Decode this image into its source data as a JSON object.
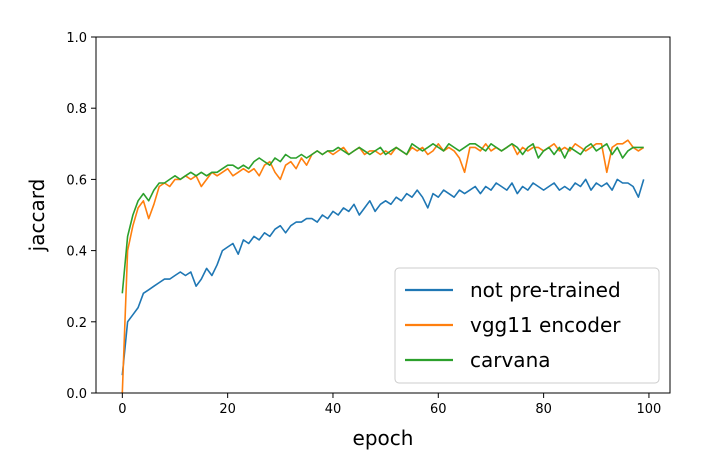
{
  "chart_data": {
    "type": "line",
    "xlabel": "epoch",
    "ylabel": "jaccard",
    "xlim": [
      -5,
      104
    ],
    "ylim": [
      0,
      1
    ],
    "xticks": [
      0,
      20,
      40,
      60,
      80,
      100
    ],
    "yticks": [
      0.0,
      0.2,
      0.4,
      0.6,
      0.8,
      1.0
    ],
    "xtick_labels": [
      "0",
      "20",
      "40",
      "60",
      "80",
      "100"
    ],
    "ytick_labels": [
      "0.0",
      "0.2",
      "0.4",
      "0.6",
      "0.8",
      "1.0"
    ],
    "legend_position": "lower-right",
    "grid": false,
    "series": [
      {
        "name": "not pre-trained",
        "color": "#1f77b4",
        "x": [
          0,
          1,
          2,
          3,
          4,
          5,
          6,
          7,
          8,
          9,
          10,
          11,
          12,
          13,
          14,
          15,
          16,
          17,
          18,
          19,
          20,
          21,
          22,
          23,
          24,
          25,
          26,
          27,
          28,
          29,
          30,
          31,
          32,
          33,
          34,
          35,
          36,
          37,
          38,
          39,
          40,
          41,
          42,
          43,
          44,
          45,
          46,
          47,
          48,
          49,
          50,
          51,
          52,
          53,
          54,
          55,
          56,
          57,
          58,
          59,
          60,
          61,
          62,
          63,
          64,
          65,
          66,
          67,
          68,
          69,
          70,
          71,
          72,
          73,
          74,
          75,
          76,
          77,
          78,
          79,
          80,
          81,
          82,
          83,
          84,
          85,
          86,
          87,
          88,
          89,
          90,
          91,
          92,
          93,
          94,
          95,
          96,
          97,
          98,
          99
        ],
        "y": [
          0.05,
          0.2,
          0.22,
          0.24,
          0.28,
          0.29,
          0.3,
          0.31,
          0.32,
          0.32,
          0.33,
          0.34,
          0.33,
          0.34,
          0.3,
          0.32,
          0.35,
          0.33,
          0.36,
          0.4,
          0.41,
          0.42,
          0.39,
          0.43,
          0.42,
          0.44,
          0.43,
          0.45,
          0.44,
          0.46,
          0.47,
          0.45,
          0.47,
          0.48,
          0.48,
          0.49,
          0.49,
          0.48,
          0.5,
          0.49,
          0.51,
          0.5,
          0.52,
          0.51,
          0.53,
          0.5,
          0.52,
          0.54,
          0.51,
          0.53,
          0.54,
          0.53,
          0.55,
          0.54,
          0.56,
          0.55,
          0.57,
          0.55,
          0.52,
          0.56,
          0.55,
          0.57,
          0.56,
          0.55,
          0.57,
          0.56,
          0.57,
          0.58,
          0.56,
          0.58,
          0.57,
          0.59,
          0.58,
          0.57,
          0.59,
          0.56,
          0.58,
          0.57,
          0.59,
          0.58,
          0.57,
          0.58,
          0.59,
          0.57,
          0.58,
          0.57,
          0.59,
          0.58,
          0.6,
          0.57,
          0.59,
          0.58,
          0.59,
          0.57,
          0.6,
          0.59,
          0.59,
          0.58,
          0.55,
          0.6
        ]
      },
      {
        "name": "vgg11 encoder",
        "color": "#ff7f0e",
        "x": [
          0,
          1,
          2,
          3,
          4,
          5,
          6,
          7,
          8,
          9,
          10,
          11,
          12,
          13,
          14,
          15,
          16,
          17,
          18,
          19,
          20,
          21,
          22,
          23,
          24,
          25,
          26,
          27,
          28,
          29,
          30,
          31,
          32,
          33,
          34,
          35,
          36,
          37,
          38,
          39,
          40,
          41,
          42,
          43,
          44,
          45,
          46,
          47,
          48,
          49,
          50,
          51,
          52,
          53,
          54,
          55,
          56,
          57,
          58,
          59,
          60,
          61,
          62,
          63,
          64,
          65,
          66,
          67,
          68,
          69,
          70,
          71,
          72,
          73,
          74,
          75,
          76,
          77,
          78,
          79,
          80,
          81,
          82,
          83,
          84,
          85,
          86,
          87,
          88,
          89,
          90,
          91,
          92,
          93,
          94,
          95,
          96,
          97,
          98,
          99
        ],
        "y": [
          0.0,
          0.4,
          0.47,
          0.52,
          0.54,
          0.49,
          0.53,
          0.58,
          0.59,
          0.58,
          0.6,
          0.6,
          0.61,
          0.6,
          0.61,
          0.58,
          0.6,
          0.62,
          0.61,
          0.62,
          0.63,
          0.61,
          0.62,
          0.63,
          0.62,
          0.63,
          0.61,
          0.64,
          0.65,
          0.62,
          0.6,
          0.64,
          0.65,
          0.63,
          0.66,
          0.64,
          0.67,
          0.68,
          0.67,
          0.68,
          0.67,
          0.68,
          0.69,
          0.67,
          0.68,
          0.69,
          0.67,
          0.68,
          0.68,
          0.67,
          0.68,
          0.67,
          0.69,
          0.68,
          0.67,
          0.69,
          0.68,
          0.69,
          0.67,
          0.68,
          0.7,
          0.68,
          0.69,
          0.68,
          0.66,
          0.62,
          0.69,
          0.69,
          0.68,
          0.7,
          0.68,
          0.69,
          0.68,
          0.69,
          0.7,
          0.67,
          0.69,
          0.68,
          0.69,
          0.69,
          0.68,
          0.69,
          0.7,
          0.68,
          0.69,
          0.68,
          0.7,
          0.69,
          0.68,
          0.69,
          0.7,
          0.7,
          0.62,
          0.69,
          0.7,
          0.7,
          0.71,
          0.69,
          0.68,
          0.69
        ]
      },
      {
        "name": "carvana",
        "color": "#2ca02c",
        "x": [
          0,
          1,
          2,
          3,
          4,
          5,
          6,
          7,
          8,
          9,
          10,
          11,
          12,
          13,
          14,
          15,
          16,
          17,
          18,
          19,
          20,
          21,
          22,
          23,
          24,
          25,
          26,
          27,
          28,
          29,
          30,
          31,
          32,
          33,
          34,
          35,
          36,
          37,
          38,
          39,
          40,
          41,
          42,
          43,
          44,
          45,
          46,
          47,
          48,
          49,
          50,
          51,
          52,
          53,
          54,
          55,
          56,
          57,
          58,
          59,
          60,
          61,
          62,
          63,
          64,
          65,
          66,
          67,
          68,
          69,
          70,
          71,
          72,
          73,
          74,
          75,
          76,
          77,
          78,
          79,
          80,
          81,
          82,
          83,
          84,
          85,
          86,
          87,
          88,
          89,
          90,
          91,
          92,
          93,
          94,
          95,
          96,
          97,
          98,
          99
        ],
        "y": [
          0.28,
          0.44,
          0.5,
          0.54,
          0.56,
          0.54,
          0.57,
          0.59,
          0.59,
          0.6,
          0.61,
          0.6,
          0.61,
          0.62,
          0.61,
          0.62,
          0.61,
          0.62,
          0.62,
          0.63,
          0.64,
          0.64,
          0.63,
          0.64,
          0.63,
          0.65,
          0.66,
          0.65,
          0.64,
          0.66,
          0.65,
          0.67,
          0.66,
          0.66,
          0.67,
          0.66,
          0.67,
          0.68,
          0.67,
          0.68,
          0.68,
          0.69,
          0.68,
          0.67,
          0.68,
          0.69,
          0.68,
          0.67,
          0.68,
          0.69,
          0.67,
          0.68,
          0.69,
          0.68,
          0.67,
          0.7,
          0.69,
          0.68,
          0.69,
          0.7,
          0.69,
          0.68,
          0.7,
          0.69,
          0.68,
          0.69,
          0.7,
          0.7,
          0.69,
          0.68,
          0.7,
          0.69,
          0.68,
          0.69,
          0.7,
          0.69,
          0.67,
          0.69,
          0.7,
          0.66,
          0.68,
          0.69,
          0.67,
          0.69,
          0.66,
          0.69,
          0.68,
          0.67,
          0.69,
          0.7,
          0.68,
          0.69,
          0.7,
          0.67,
          0.69,
          0.66,
          0.68,
          0.69,
          0.69,
          0.69
        ]
      }
    ]
  }
}
